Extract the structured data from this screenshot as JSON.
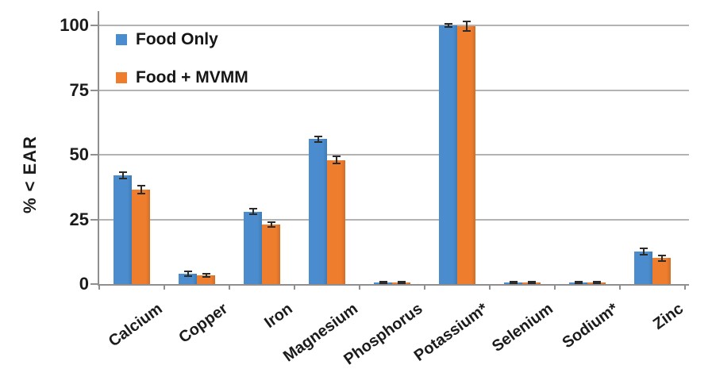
{
  "figure": {
    "background": "#ffffff",
    "text_color": "#1b1b1b",
    "gridline_color": "#b3b3b3",
    "axis_color": "#8f8f8f"
  },
  "chart_data": {
    "type": "bar",
    "title": "",
    "xlabel": "",
    "ylabel": "% < EAR",
    "categories": [
      "Calcium",
      "Copper",
      "Iron",
      "Magnesium",
      "Phosphorus",
      "Potassium*",
      "Selenium",
      "Sodium*",
      "Zinc"
    ],
    "series": [
      {
        "name": "Food Only",
        "color": "#4a8ccd",
        "values": [
          42,
          4,
          28,
          56,
          0.6,
          100,
          0.6,
          0.6,
          12.5
        ],
        "errors": [
          1.3,
          0.8,
          1,
          1,
          0.4,
          0.6,
          0.4,
          0.4,
          1.3
        ]
      },
      {
        "name": "Food + MVMM",
        "color": "#ee7d2d",
        "values": [
          36.5,
          3.3,
          23,
          48,
          0.6,
          99.7,
          0.6,
          0.6,
          10
        ],
        "errors": [
          1.5,
          0.6,
          1,
          1.5,
          0.4,
          1.8,
          0.4,
          0.4,
          1
        ]
      }
    ],
    "yticks": [
      0,
      25,
      50,
      75,
      100
    ],
    "ylim": [
      0,
      100
    ],
    "grid": true,
    "error_bars": true,
    "legend_position": "top-left-inside"
  }
}
